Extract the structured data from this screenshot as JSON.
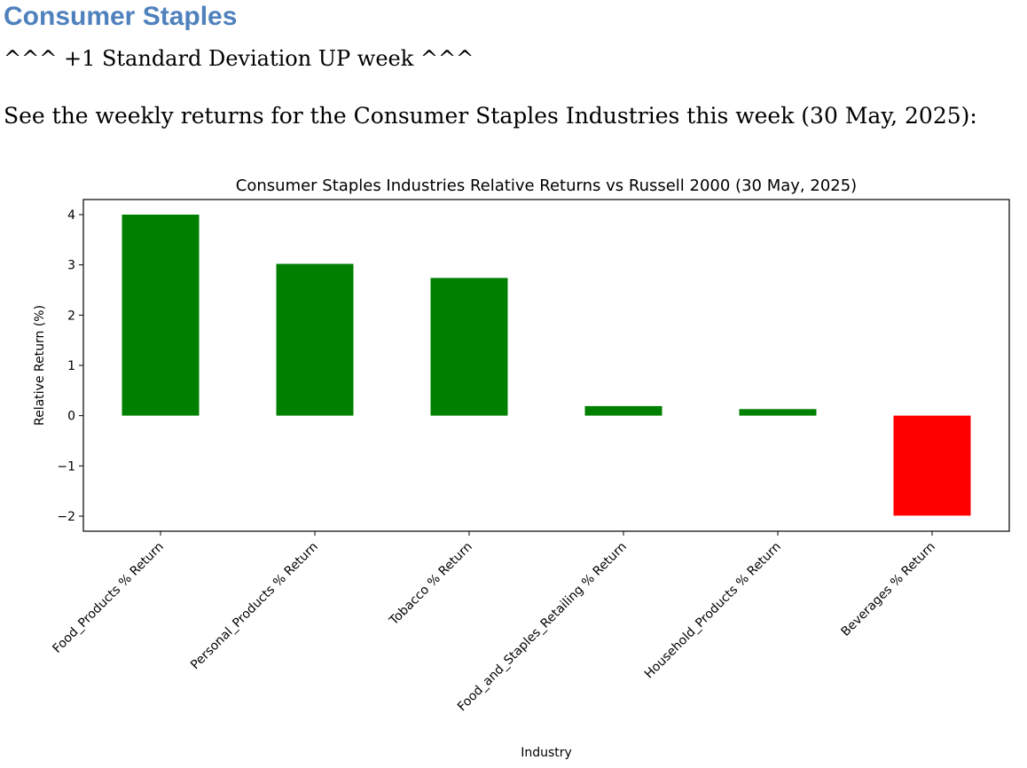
{
  "document": {
    "heading": "Consumer Staples",
    "subheading": "^^^ +1 Standard Deviation UP week ^^^",
    "intro": "See the weekly returns for the Consumer Staples Industries this week (30 May, 2025):"
  },
  "chart_data": {
    "type": "bar",
    "title": "Consumer Staples Industries Relative Returns vs Russell 2000 (30 May, 2025)",
    "xlabel": "Industry",
    "ylabel": "Relative Return (%)",
    "categories": [
      "Food_Products % Return",
      "Personal_Products % Return",
      "Tobacco % Return",
      "Food_and_Staples_Retailing % Return",
      "Household_Products % Return",
      "Beverages % Return"
    ],
    "values": [
      4.0,
      3.02,
      2.74,
      0.19,
      0.13,
      -1.99
    ],
    "ylim": [
      -2.3,
      4.3
    ],
    "yticks": [
      -2,
      -1,
      0,
      1,
      2,
      3,
      4
    ],
    "grid": false,
    "legend": "none",
    "colors": {
      "positive": "#008000",
      "negative": "#ff0000"
    }
  }
}
